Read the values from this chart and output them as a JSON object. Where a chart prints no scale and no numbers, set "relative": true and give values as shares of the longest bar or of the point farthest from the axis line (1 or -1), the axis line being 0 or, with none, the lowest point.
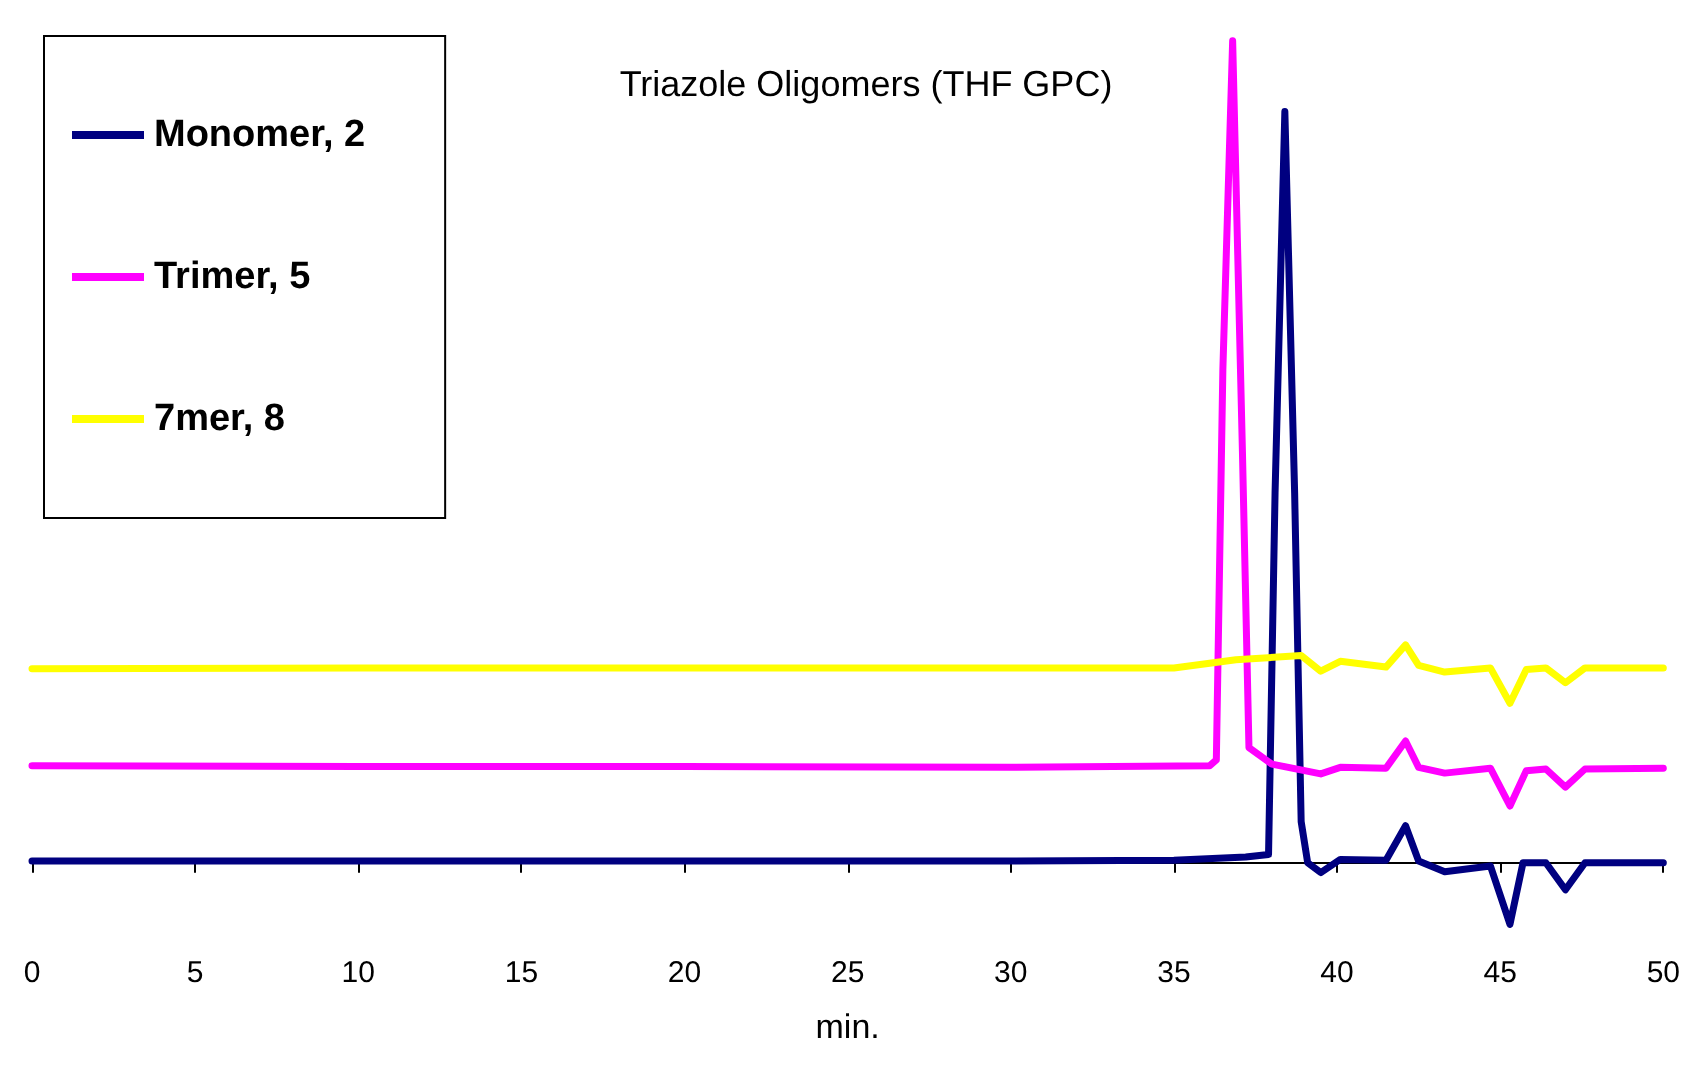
{
  "chart_data": {
    "type": "line",
    "title": "Triazole Oligomers (THF GPC)",
    "xlabel": "min.",
    "relative": true,
    "xlim": [
      0,
      50
    ],
    "xticks": [
      0,
      5,
      10,
      15,
      20,
      25,
      30,
      35,
      40,
      45,
      50
    ],
    "grid": false,
    "legend": "top left",
    "marker": "none",
    "line_style": "solid",
    "series": [
      {
        "name": "Monomer, 2",
        "color": "#000080",
        "x": [
          0,
          10,
          20,
          30,
          35,
          37.2,
          37.9,
          38.1,
          38.4,
          38.7,
          38.9,
          39.1,
          39.5,
          40.1,
          41.5,
          42.1,
          42.5,
          43.3,
          44.7,
          45.3,
          45.7,
          46.4,
          47.0,
          47.6,
          50
        ],
        "values": [
          0.002,
          0.002,
          0.002,
          0.002,
          0.003,
          0.007,
          0.01,
          0.45,
          0.914,
          0.45,
          0.05,
          0.0,
          -0.012,
          0.004,
          0.003,
          0.045,
          0.002,
          -0.011,
          -0.004,
          -0.075,
          0.0,
          0.0,
          -0.033,
          0.0,
          0.0
        ]
      },
      {
        "name": "Trimer, 5",
        "color": "#ff00ff",
        "x": [
          0,
          10,
          20,
          30,
          36.1,
          36.3,
          36.5,
          36.8,
          37.1,
          37.3,
          38,
          39.5,
          40.1,
          41.5,
          42.1,
          42.5,
          43.3,
          44.7,
          45.3,
          45.8,
          46.4,
          47.0,
          47.6,
          50
        ],
        "values": [
          0.118,
          0.117,
          0.117,
          0.116,
          0.118,
          0.125,
          0.6,
          1.0,
          0.5,
          0.14,
          0.12,
          0.108,
          0.116,
          0.115,
          0.148,
          0.116,
          0.109,
          0.115,
          0.069,
          0.112,
          0.114,
          0.092,
          0.114,
          0.115
        ]
      },
      {
        "name": "7mer, 8",
        "color": "#ffff00",
        "x": [
          0,
          10,
          20,
          30,
          35,
          36.9,
          38.9,
          39.5,
          40.1,
          41.5,
          42.1,
          42.5,
          43.3,
          44.7,
          45.3,
          45.8,
          46.4,
          47.0,
          47.6,
          50
        ],
        "values": [
          0.236,
          0.237,
          0.237,
          0.237,
          0.237,
          0.247,
          0.252,
          0.233,
          0.245,
          0.238,
          0.265,
          0.24,
          0.232,
          0.237,
          0.194,
          0.235,
          0.237,
          0.219,
          0.237,
          0.237
        ]
      }
    ]
  }
}
